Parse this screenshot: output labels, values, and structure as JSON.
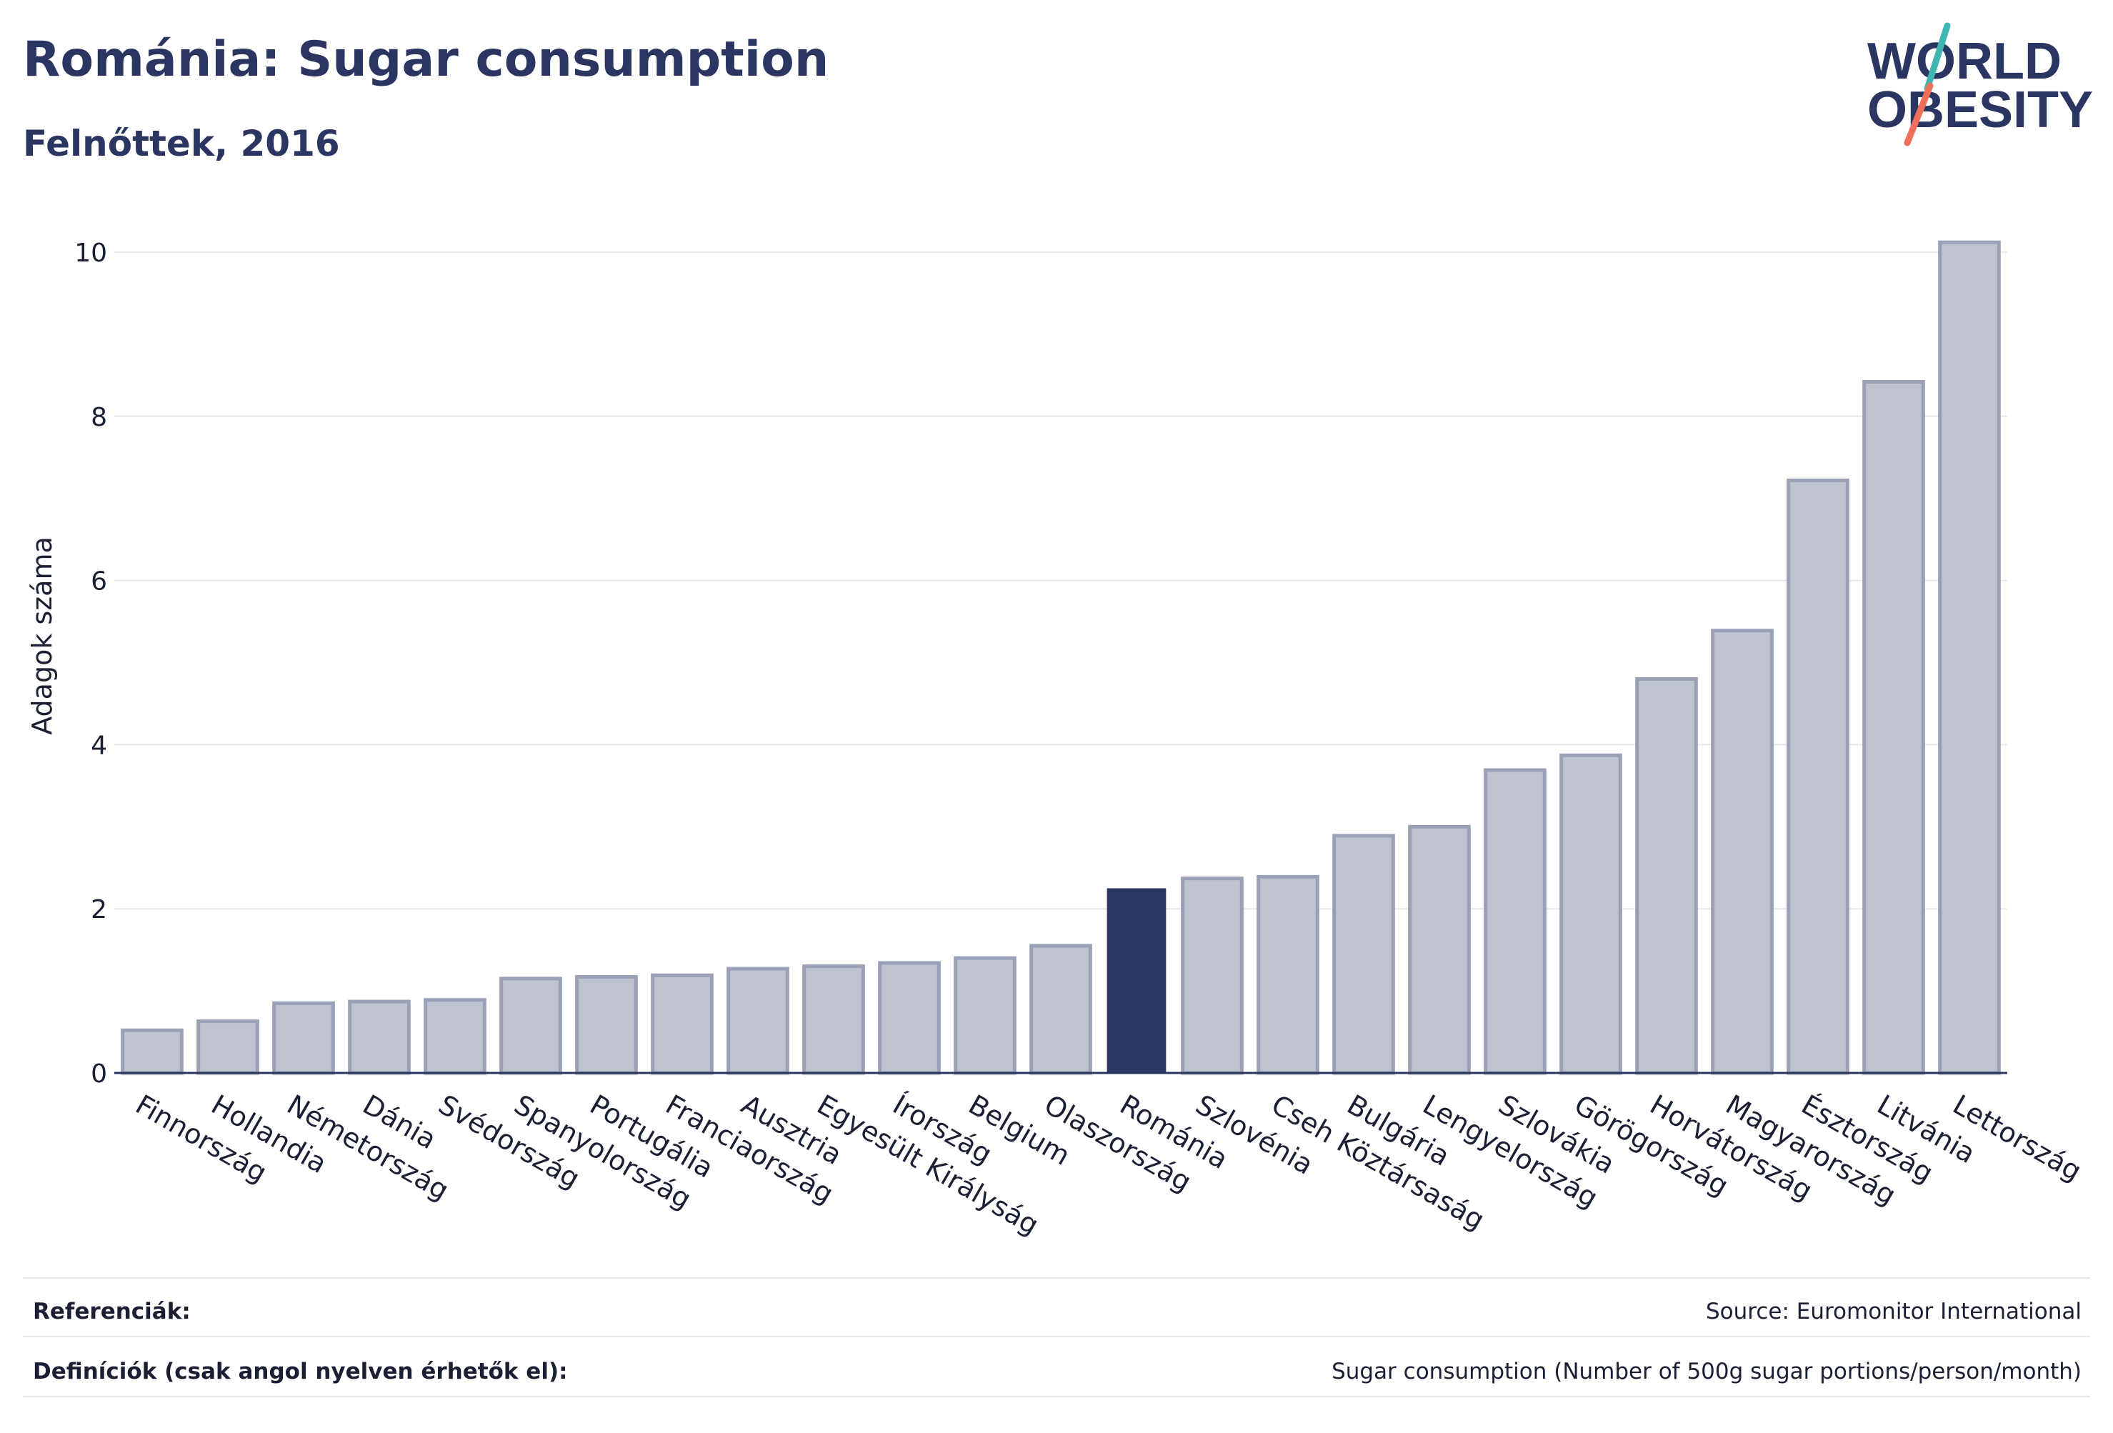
{
  "header": {
    "title": "Románia: Sugar consumption",
    "subtitle": "Felnőttek, 2016"
  },
  "logo": {
    "line1": "WORLD",
    "line2": "OBESITY"
  },
  "chart_data": {
    "type": "bar",
    "ylabel": "Adagok száma",
    "ylim": [
      0,
      10.2
    ],
    "yticks": [
      0,
      2,
      4,
      6,
      8,
      10
    ],
    "grid": true,
    "highlight": "Románia",
    "colors": {
      "bar": "#bfc3d0",
      "bar_edge": "#9aa1b6",
      "highlight": "#2a3561",
      "grid": "#e6e8ee",
      "axis": "#2a3561"
    },
    "categories": [
      "Finnország",
      "Hollandia",
      "Németország",
      "Dánia",
      "Svédország",
      "Spanyolország",
      "Portugália",
      "Franciaország",
      "Ausztria",
      "Egyesült Királyság",
      "Írország",
      "Belgium",
      "Olaszország",
      "Románia",
      "Szlovénia",
      "Cseh Köztársaság",
      "Bulgária",
      "Lengyelország",
      "Szlovákia",
      "Görögország",
      "Horvátország",
      "Magyarország",
      "Észtország",
      "Litvánia",
      "Lettország"
    ],
    "values": [
      0.52,
      0.63,
      0.85,
      0.87,
      0.89,
      1.15,
      1.17,
      1.19,
      1.27,
      1.3,
      1.34,
      1.4,
      1.55,
      2.25,
      2.37,
      2.39,
      2.89,
      3.0,
      3.69,
      3.87,
      4.8,
      5.39,
      7.22,
      8.42,
      10.12
    ]
  },
  "footer": {
    "references_label": "Referenciák:",
    "references_value": "Source: Euromonitor International",
    "definitions_label": "Definíciók (csak angol nyelven érhetők el):",
    "definitions_value": "Sugar consumption (Number of 500g sugar portions/person/month)"
  }
}
